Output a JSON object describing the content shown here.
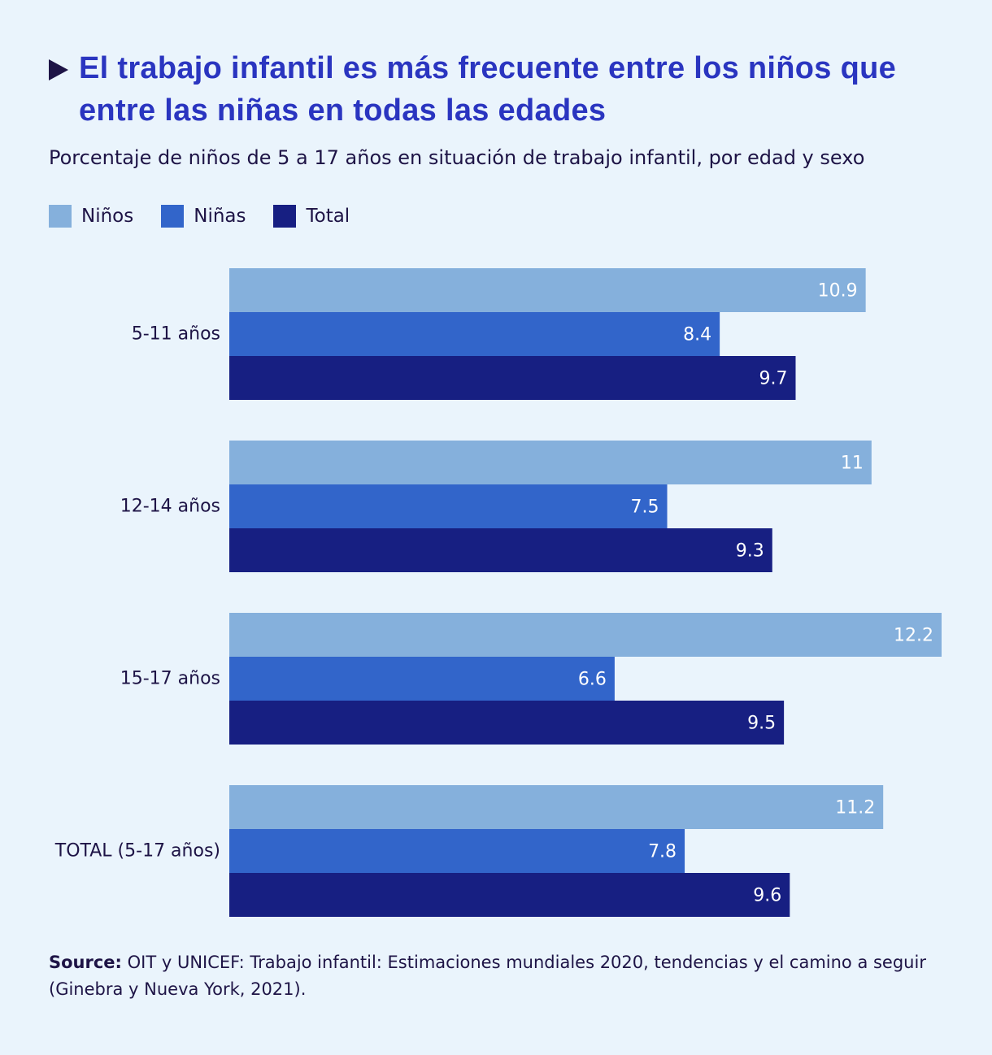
{
  "header": {
    "title": "El trabajo infantil es más frecuente entre los niños que entre las niñas en todas las edades",
    "subtitle": "Porcentaje de niños de 5 a 17 años en situación de trabajo infantil, por edad y sexo"
  },
  "icons": {
    "title_marker": "play-triangle-icon"
  },
  "legend": [
    {
      "label": "Niños",
      "color": "#85b0dc"
    },
    {
      "label": "Niñas",
      "color": "#3265ca"
    },
    {
      "label": "Total",
      "color": "#171f82"
    }
  ],
  "chart_data": {
    "type": "bar",
    "orientation": "horizontal",
    "categories": [
      "5-11 años",
      "12-14 años",
      "15-17 años",
      "TOTAL (5-17 años)"
    ],
    "series": [
      {
        "name": "Niños",
        "color": "#85b0dc",
        "values": [
          10.9,
          11,
          12.2,
          11.2
        ],
        "labels": [
          "10.9",
          "11",
          "12.2",
          "11.2"
        ]
      },
      {
        "name": "Niñas",
        "color": "#3265ca",
        "values": [
          8.4,
          7.5,
          6.6,
          7.8
        ],
        "labels": [
          "8.4",
          "7.5",
          "6.6",
          "7.8"
        ]
      },
      {
        "name": "Total",
        "color": "#171f82",
        "values": [
          9.7,
          9.3,
          9.5,
          9.6
        ],
        "labels": [
          "9.7",
          "9.3",
          "9.5",
          "9.6"
        ]
      }
    ],
    "xlim": [
      0,
      12.2
    ],
    "grid": false,
    "legend_position": "top-left"
  },
  "source": {
    "label": "Source:",
    "text": "OIT y UNICEF: Trabajo infantil: Estimaciones mundiales 2020, tendencias y el camino a seguir (Ginebra y Nueva York, 2021)."
  }
}
